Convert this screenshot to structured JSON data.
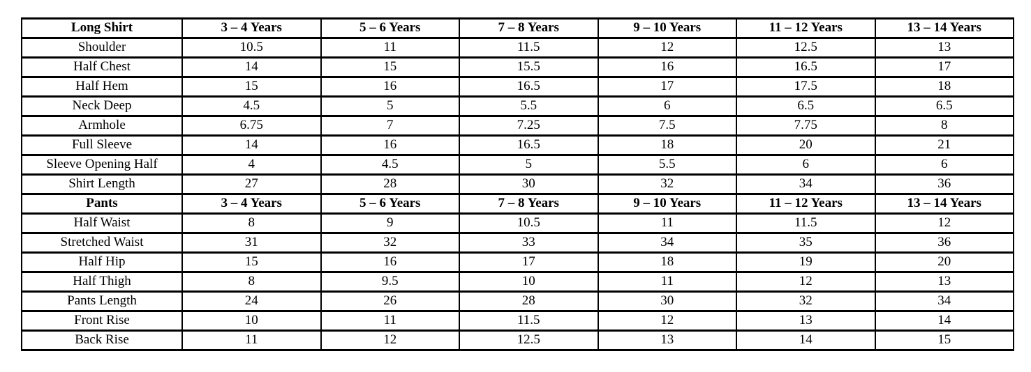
{
  "page": {
    "background_color": "#ffffff",
    "text_color": "#000000",
    "border_color": "#000000"
  },
  "chart_data": [
    {
      "type": "table",
      "title": "Long Shirt",
      "columns": [
        "Long Shirt",
        "3 – 4 Years",
        "5 – 6 Years",
        "7 – 8 Years",
        "9 – 10 Years",
        "11 – 12 Years",
        "13 – 14 Years"
      ],
      "rows": [
        [
          "Shoulder",
          "10.5",
          "11",
          "11.5",
          "12",
          "12.5",
          "13"
        ],
        [
          "Half Chest",
          "14",
          "15",
          "15.5",
          "16",
          "16.5",
          "17"
        ],
        [
          "Half Hem",
          "15",
          "16",
          "16.5",
          "17",
          "17.5",
          "18"
        ],
        [
          "Neck Deep",
          "4.5",
          "5",
          "5.5",
          "6",
          "6.5",
          "6.5"
        ],
        [
          "Armhole",
          "6.75",
          "7",
          "7.25",
          "7.5",
          "7.75",
          "8"
        ],
        [
          "Full Sleeve",
          "14",
          "16",
          "16.5",
          "18",
          "20",
          "21"
        ],
        [
          "Sleeve Opening Half",
          "4",
          "4.5",
          "5",
          "5.5",
          "6",
          "6"
        ],
        [
          "Shirt Length",
          "27",
          "28",
          "30",
          "32",
          "34",
          "36"
        ]
      ]
    },
    {
      "type": "table",
      "title": "Pants",
      "columns": [
        "Pants",
        "3 – 4 Years",
        "5 – 6 Years",
        "7 – 8 Years",
        "9 – 10 Years",
        "11 – 12 Years",
        "13 – 14 Years"
      ],
      "rows": [
        [
          "Half Waist",
          "8",
          "9",
          "10.5",
          "11",
          "11.5",
          "12"
        ],
        [
          "Stretched Waist",
          "31",
          "32",
          "33",
          "34",
          "35",
          "36"
        ],
        [
          "Half Hip",
          "15",
          "16",
          "17",
          "18",
          "19",
          "20"
        ],
        [
          "Half Thigh",
          "8",
          "9.5",
          "10",
          "11",
          "12",
          "13"
        ],
        [
          "Pants Length",
          "24",
          "26",
          "28",
          "30",
          "32",
          "34"
        ],
        [
          "Front Rise",
          "10",
          "11",
          "11.5",
          "12",
          "13",
          "14"
        ],
        [
          "Back Rise",
          "11",
          "12",
          "12.5",
          "13",
          "14",
          "15"
        ]
      ]
    }
  ]
}
